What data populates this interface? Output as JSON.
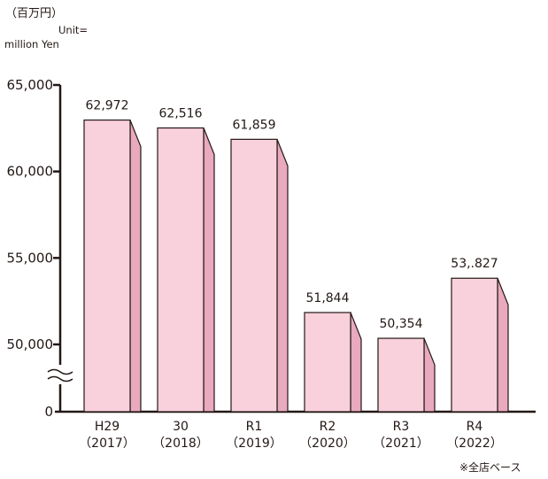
{
  "unit": {
    "jp": "（百万円）",
    "en_line1": "Unit=",
    "en_line2": "million Yen"
  },
  "footnote": "※全店ベース",
  "colors": {
    "bar_front": "#f9d1dc",
    "bar_side": "#e9a9bf",
    "stroke": "#231815"
  },
  "chart_data": {
    "type": "bar",
    "categories": [
      "H29（2017）",
      "30（2018）",
      "R1（2019）",
      "R2（2020）",
      "R3（2021）",
      "R4（2022）"
    ],
    "category_lines": [
      [
        "H29",
        "（2017）"
      ],
      [
        "30",
        "（2018）"
      ],
      [
        "R1",
        "（2019）"
      ],
      [
        "R2",
        "（2020）"
      ],
      [
        "R3",
        "（2021）"
      ],
      [
        "R4",
        "（2022）"
      ]
    ],
    "values": [
      62972,
      62516,
      61859,
      51844,
      50354,
      53827
    ],
    "data_labels": [
      "62,972",
      "62,516",
      "61,859",
      "51,844",
      "50,354",
      "53,.827"
    ],
    "ylim": [
      50000,
      65000
    ],
    "y_ticks": [
      {
        "value": 65000,
        "label": "65,000"
      },
      {
        "value": 60000,
        "label": "60,000"
      },
      {
        "value": 55000,
        "label": "55,000"
      },
      {
        "value": 50000,
        "label": "50,000"
      },
      {
        "value": 0,
        "label": "0"
      }
    ],
    "axis_break": true,
    "bar_style": "3d-extruded",
    "grid": false,
    "legend": "none",
    "title": "",
    "xlabel": "",
    "ylabel": "（百万円）"
  }
}
